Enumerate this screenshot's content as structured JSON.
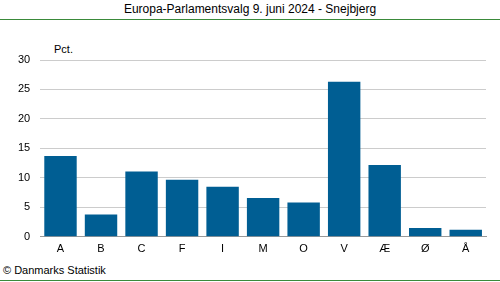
{
  "chart_data": {
    "type": "bar",
    "title": "Europa-Parlamentsvalg 9. juni 2024 - Snejbjerg",
    "y_label": "Pct.",
    "source": "© Danmarks Statistik",
    "categories": [
      "A",
      "B",
      "C",
      "F",
      "I",
      "M",
      "O",
      "V",
      "Æ",
      "Ø",
      "Å"
    ],
    "values": [
      13.7,
      3.8,
      11.1,
      9.7,
      8.5,
      6.6,
      5.8,
      26.3,
      12.2,
      1.5,
      1.2
    ],
    "color": "#005e93",
    "ylim": [
      0,
      30
    ],
    "yticks": [
      0,
      5,
      10,
      15,
      20,
      25,
      30
    ],
    "grid": true
  }
}
